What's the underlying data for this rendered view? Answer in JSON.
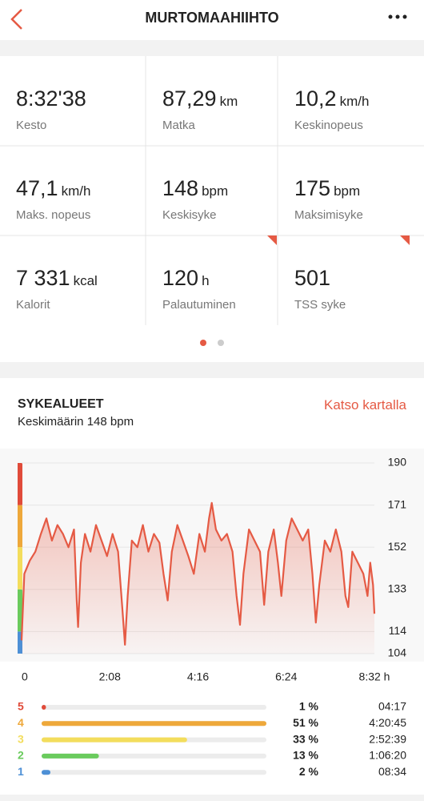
{
  "header": {
    "title": "MURTOMAAHIIHTO"
  },
  "stats": [
    {
      "value": "8:32'38",
      "label": "Kesto"
    },
    {
      "value": "87,29",
      "unit": "km",
      "label": "Matka"
    },
    {
      "value": "10,2",
      "unit": "km/h",
      "label": "Keskinopeus"
    },
    {
      "value": "47,1",
      "unit": "km/h",
      "label": "Maks. nopeus"
    },
    {
      "value": "148",
      "unit": "bpm",
      "label": "Keskisyke"
    },
    {
      "value": "175",
      "unit": "bpm",
      "label": "Maksimisyke"
    },
    {
      "value": "7 331",
      "unit": "kcal",
      "label": "Kalorit"
    },
    {
      "value": "120",
      "unit": "h",
      "label": "Palautuminen"
    },
    {
      "value": "501",
      "label": "TSS syke"
    }
  ],
  "section": {
    "title": "SYKEALUEET",
    "subtitle": "Keskimäärin 148 bpm",
    "link": "Katso kartalla"
  },
  "chart_data": {
    "type": "line",
    "x": [
      0,
      4,
      12,
      20,
      28,
      36,
      44,
      52,
      60,
      68,
      76,
      80,
      82,
      86,
      92,
      100,
      108,
      116,
      124,
      132,
      140,
      146,
      150,
      154,
      160,
      168,
      176,
      184,
      192,
      200,
      206,
      212,
      218,
      226,
      234,
      242,
      250,
      258,
      266,
      272,
      276,
      282,
      290,
      298,
      306,
      312,
      317,
      322,
      330,
      338,
      346,
      352,
      358,
      366,
      372,
      377,
      384,
      392,
      400,
      408,
      416,
      422,
      427,
      432,
      440,
      448,
      456,
      464,
      470,
      474,
      480,
      488,
      496,
      502,
      506,
      510,
      512
    ],
    "series": [
      {
        "color": "#e55a44",
        "values": [
          110,
          140,
          146,
          150,
          158,
          165,
          155,
          162,
          158,
          152,
          160,
          128,
          116,
          145,
          158,
          150,
          162,
          155,
          148,
          158,
          150,
          125,
          108,
          130,
          155,
          152,
          162,
          150,
          158,
          154,
          140,
          128,
          150,
          162,
          155,
          148,
          140,
          158,
          150,
          165,
          172,
          160,
          155,
          158,
          150,
          130,
          117,
          140,
          160,
          155,
          150,
          126,
          150,
          160,
          145,
          130,
          155,
          165,
          160,
          155,
          160,
          140,
          118,
          135,
          155,
          150,
          160,
          150,
          130,
          125,
          150,
          145,
          140,
          130,
          145,
          135,
          122
        ]
      }
    ],
    "xlim": [
      0,
      512
    ],
    "xticks": [
      0,
      {
        "value": 128,
        "label": "2:08"
      },
      {
        "value": 256,
        "label": "4:16"
      },
      {
        "value": 384,
        "label": "6:24"
      },
      {
        "value": 512,
        "label": "8:32 h"
      }
    ],
    "ylim": [
      104,
      190
    ],
    "yticks": [
      104,
      114,
      133,
      152,
      171,
      190
    ],
    "grid": true
  },
  "zones": {
    "type": "bar",
    "categories": [
      "5",
      "4",
      "3",
      "2",
      "1"
    ],
    "colors": [
      "#e04b3a",
      "#eea83a",
      "#f3dd5c",
      "#6acb5d",
      "#4d90d6"
    ],
    "values": [
      1,
      51,
      33,
      13,
      2
    ],
    "value_labels": [
      "1 %",
      "51 %",
      "33 %",
      "13 %",
      "2 %"
    ],
    "times": [
      "04:17",
      "4:20:45",
      "2:52:39",
      "1:06:20",
      "08:34"
    ]
  }
}
